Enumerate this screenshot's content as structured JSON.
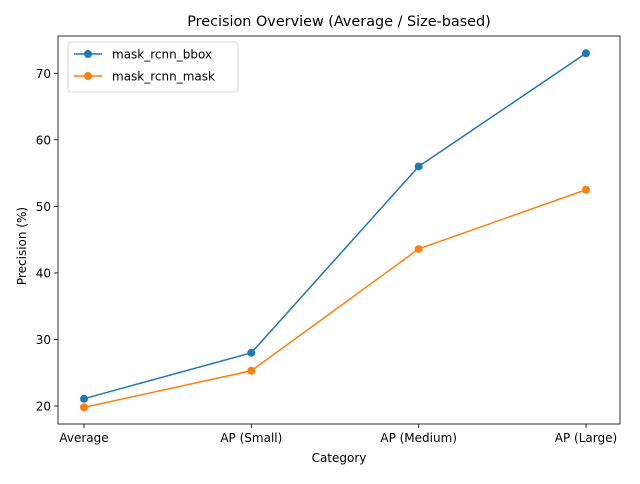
{
  "chart_data": {
    "type": "line",
    "title": "Precision Overview (Average / Size-based)",
    "xlabel": "Category",
    "ylabel": "Precision (%)",
    "categories": [
      "Average",
      "AP (Small)",
      "AP (Medium)",
      "AP (Large)"
    ],
    "ylim": [
      17.3,
      75.6
    ],
    "yticks": [
      20,
      30,
      40,
      50,
      60,
      70
    ],
    "grid": false,
    "legend_position": "top-left",
    "series": [
      {
        "name": "mask_rcnn_bbox",
        "color": "#1f77b4",
        "values": [
          21.1,
          28.0,
          56.0,
          73.0
        ]
      },
      {
        "name": "mask_rcnn_mask",
        "color": "#ff7f0e",
        "values": [
          19.8,
          25.3,
          43.6,
          52.5
        ]
      }
    ]
  }
}
